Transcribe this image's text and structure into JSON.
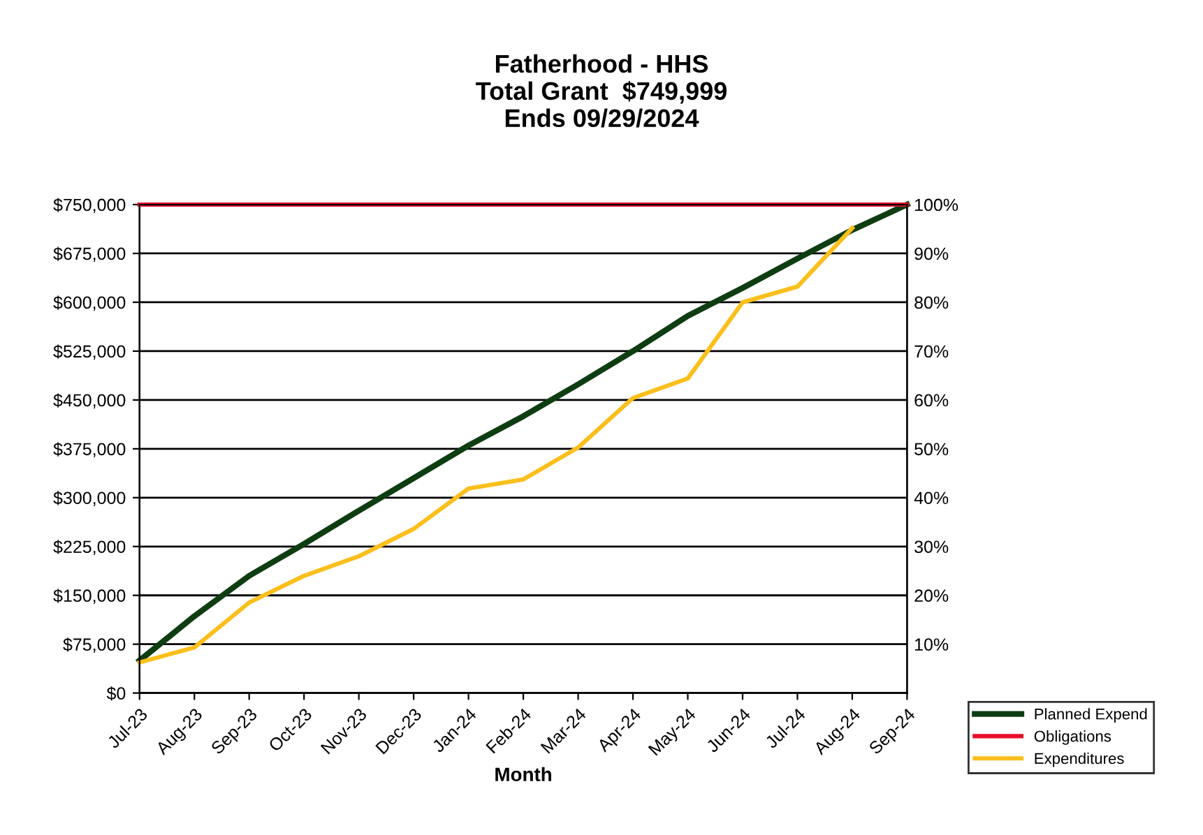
{
  "chart_data": {
    "type": "line",
    "title": "Fatherhood - HHS\nTotal Grant  $749,999\nEnds 09/29/2024",
    "xlabel": "Month",
    "categories": [
      "Jul-23",
      "Aug-23",
      "Sep-23",
      "Oct-23",
      "Nov-23",
      "Dec-23",
      "Jan-24",
      "Feb-24",
      "Mar-24",
      "Apr-24",
      "May-24",
      "Jun-24",
      "Jul-24",
      "Aug-24",
      "Sep-24"
    ],
    "series": [
      {
        "name": "Planned Expend",
        "color": "#0f3d12",
        "values": [
          50000,
          118000,
          180000,
          229000,
          280000,
          330000,
          380000,
          425000,
          474000,
          525000,
          579000,
          622000,
          667000,
          711000,
          750000
        ]
      },
      {
        "name": "Obligations",
        "color": "#e8102a",
        "values": [
          750000,
          750000,
          750000,
          750000,
          750000,
          750000,
          750000,
          750000,
          750000,
          750000,
          750000,
          750000,
          750000,
          750000,
          750000
        ]
      },
      {
        "name": "Expenditures",
        "color": "#fbbf1c",
        "values": [
          47000,
          70000,
          139000,
          180000,
          210000,
          252000,
          314000,
          328000,
          377000,
          453000,
          483000,
          600000,
          624000,
          714000,
          null
        ]
      }
    ],
    "ylim": [
      0,
      750000
    ],
    "yticks": [
      {
        "value": 0,
        "label": "$0"
      },
      {
        "value": 75000,
        "label": "$75,000"
      },
      {
        "value": 150000,
        "label": "$150,000"
      },
      {
        "value": 225000,
        "label": "$225,000"
      },
      {
        "value": 300000,
        "label": "$300,000"
      },
      {
        "value": 375000,
        "label": "$375,000"
      },
      {
        "value": 450000,
        "label": "$450,000"
      },
      {
        "value": 525000,
        "label": "$525,000"
      },
      {
        "value": 600000,
        "label": "$600,000"
      },
      {
        "value": 675000,
        "label": "$675,000"
      },
      {
        "value": 750000,
        "label": "$750,000"
      }
    ],
    "y2lim": [
      0,
      100
    ],
    "y2ticks": [
      {
        "value": 10,
        "label": "10%"
      },
      {
        "value": 20,
        "label": "20%"
      },
      {
        "value": 30,
        "label": "30%"
      },
      {
        "value": 40,
        "label": "40%"
      },
      {
        "value": 50,
        "label": "50%"
      },
      {
        "value": 60,
        "label": "60%"
      },
      {
        "value": 70,
        "label": "70%"
      },
      {
        "value": 80,
        "label": "80%"
      },
      {
        "value": 90,
        "label": "90%"
      },
      {
        "value": 100,
        "label": "100%"
      }
    ],
    "grid": "y",
    "legend": "bottom right",
    "marker": "none",
    "line_style": "solid"
  }
}
